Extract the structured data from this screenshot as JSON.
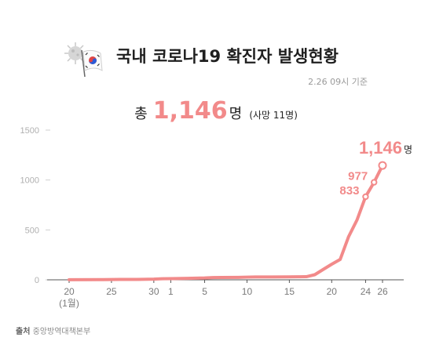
{
  "header": {
    "title": "국내 코로나19 확진자 발생현황",
    "as_of": "2.26 09시 기준"
  },
  "summary": {
    "prefix": "총",
    "total": "1,146",
    "unit": "명",
    "deaths_note": "(사망 11명)"
  },
  "footer": {
    "source_label": "출처",
    "source_name": "중앙방역대책본부"
  },
  "colors": {
    "line": "#f28a8a",
    "axis": "#555555",
    "tick_text": "#7a7a7a",
    "ytick_text": "#b0b0b0"
  },
  "chart_data": {
    "type": "line",
    "title": "국내 코로나19 확진자 발생현황",
    "xlabel": "",
    "ylabel": "",
    "ylim": [
      0,
      1500
    ],
    "yticks": [
      0,
      500,
      1000,
      1500
    ],
    "xtick_labels": [
      {
        "day": 0,
        "label": "20"
      },
      {
        "day": 0,
        "label": "(1월)",
        "sub": true
      },
      {
        "day": 5,
        "label": "25"
      },
      {
        "day": 10,
        "label": "30"
      },
      {
        "day": 12,
        "label": "1"
      },
      {
        "day": 16,
        "label": "5"
      },
      {
        "day": 21,
        "label": "10"
      },
      {
        "day": 26,
        "label": "15"
      },
      {
        "day": 31,
        "label": "20"
      },
      {
        "day": 35,
        "label": "24"
      },
      {
        "day": 37,
        "label": "26"
      }
    ],
    "x_range": [
      0,
      37
    ],
    "series": [
      {
        "values": [
          {
            "day": 0,
            "y": 1
          },
          {
            "day": 4,
            "y": 2
          },
          {
            "day": 6,
            "y": 4
          },
          {
            "day": 7,
            "y": 4
          },
          {
            "day": 8,
            "y": 4
          },
          {
            "day": 10,
            "y": 7
          },
          {
            "day": 11,
            "y": 11
          },
          {
            "day": 12,
            "y": 12
          },
          {
            "day": 14,
            "y": 15
          },
          {
            "day": 16,
            "y": 19
          },
          {
            "day": 17,
            "y": 23
          },
          {
            "day": 18,
            "y": 24
          },
          {
            "day": 20,
            "y": 25
          },
          {
            "day": 21,
            "y": 27
          },
          {
            "day": 22,
            "y": 28
          },
          {
            "day": 24,
            "y": 28
          },
          {
            "day": 26,
            "y": 29
          },
          {
            "day": 27,
            "y": 30
          },
          {
            "day": 28,
            "y": 31
          },
          {
            "day": 29,
            "y": 51
          },
          {
            "day": 30,
            "y": 104
          },
          {
            "day": 31,
            "y": 156
          },
          {
            "day": 32,
            "y": 204
          },
          {
            "day": 33,
            "y": 433
          },
          {
            "day": 34,
            "y": 602
          },
          {
            "day": 35,
            "y": 833
          },
          {
            "day": 36,
            "y": 977
          },
          {
            "day": 37,
            "y": 1146
          }
        ]
      }
    ],
    "annotations": [
      {
        "day": 35,
        "y": 833,
        "label": "833"
      },
      {
        "day": 36,
        "y": 977,
        "label": "977"
      },
      {
        "day": 37,
        "y": 1146,
        "label": "1,146",
        "unit": "명"
      }
    ]
  }
}
